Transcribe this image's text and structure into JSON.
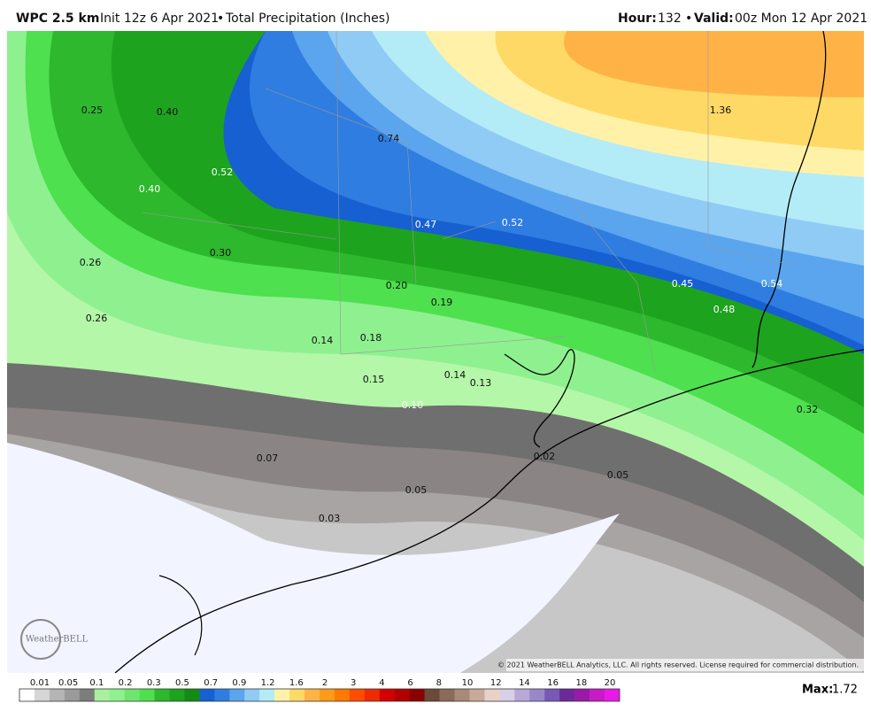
{
  "header": {
    "model": "WPC 2.5 km",
    "init": "Init 12z 6 Apr 2021",
    "product": "Total Precipitation (Inches)",
    "hour_label": "Hour:",
    "hour": "132",
    "valid_label": "Valid:",
    "valid": "00z Mon 12 Apr 2021"
  },
  "map": {
    "labels": [
      "0.25",
      "0.40",
      "0.74",
      "1.36",
      "0.52",
      "0.40",
      "0.47",
      "0.52",
      "0.26",
      "0.30",
      "0.20",
      "0.45",
      "0.54",
      "0.19",
      "0.48",
      "0.26",
      "0.14",
      "0.18",
      "0.15",
      "0.14",
      "0.13",
      "0.10",
      "0.32",
      "0.07",
      "0.02",
      "0.05",
      "0.05",
      "0.03"
    ],
    "logo": "WeatherBELL",
    "copyright": "© 2021 WeatherBELL Analytics, LLC. All rights reserved. License required for commercial distribution."
  },
  "legend": {
    "ticks": [
      "0.01",
      "0.05",
      "0.1",
      "0.2",
      "0.3",
      "0.5",
      "0.7",
      "0.9",
      "1.2",
      "1.6",
      "2",
      "3",
      "4",
      "6",
      "8",
      "10",
      "12",
      "14",
      "16",
      "18",
      "20"
    ],
    "colors": [
      "#ffffff",
      "#d6d6d6",
      "#b5b5b5",
      "#9a9a9a",
      "#7d7d7d",
      "#a8f0a0",
      "#8ff08f",
      "#6ee66e",
      "#4ee04e",
      "#2db82d",
      "#1ea31e",
      "#128c12",
      "#1660d2",
      "#2f7de0",
      "#5aa5ee",
      "#8fcbf5",
      "#b3ecf7",
      "#fff2a8",
      "#ffd966",
      "#ffb347",
      "#ff9a1a",
      "#ff7a00",
      "#ff4d00",
      "#f02a00",
      "#d40000",
      "#b00000",
      "#8c0000",
      "#6b4a3a",
      "#8a6a5a",
      "#a88a7a",
      "#c8aa9a",
      "#e8d2c8",
      "#d8d0e8",
      "#b8a8d8",
      "#9888c8",
      "#7858b8",
      "#6a2a9a",
      "#9a1aa8",
      "#c81ac8",
      "#e81ae8"
    ],
    "max_label": "Max:",
    "max": "1.72"
  }
}
